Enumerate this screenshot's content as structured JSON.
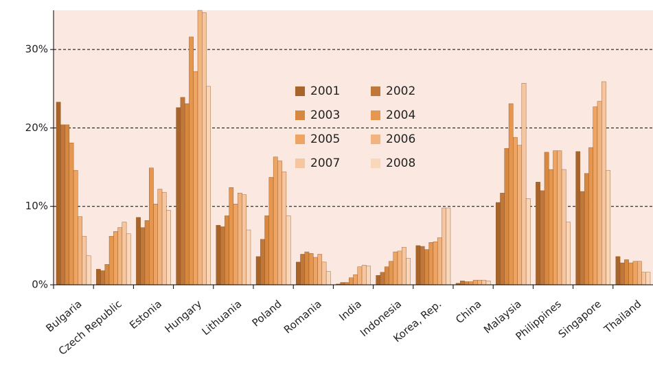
{
  "chart_data": {
    "type": "bar",
    "categories": [
      "Bulgaria",
      "Czech Republic",
      "Estonia",
      "Hungary",
      "Lithuania",
      "Poland",
      "Romania",
      "India",
      "Indonesia",
      "Korea, Rep.",
      "China",
      "Malaysia",
      "Philippines",
      "Singapore",
      "Thailand"
    ],
    "series": [
      {
        "name": "2001",
        "color": "#a9642a",
        "values": [
          23.3,
          2.0,
          8.6,
          22.6,
          7.6,
          3.6,
          2.9,
          0.1,
          1.2,
          5.0,
          0.2,
          10.5,
          13.1,
          17.0,
          3.6
        ]
      },
      {
        "name": "2002",
        "color": "#c0773a",
        "values": [
          20.4,
          1.8,
          7.3,
          23.9,
          7.4,
          5.8,
          3.9,
          0.3,
          1.6,
          4.9,
          0.5,
          11.7,
          12.0,
          11.9,
          2.8
        ]
      },
      {
        "name": "2003",
        "color": "#d68740",
        "values": [
          20.4,
          2.6,
          8.2,
          23.1,
          8.8,
          8.8,
          4.2,
          0.3,
          2.3,
          4.5,
          0.4,
          17.4,
          16.9,
          14.2,
          3.2
        ]
      },
      {
        "name": "2004",
        "color": "#e5964f",
        "values": [
          18.1,
          6.2,
          14.9,
          31.6,
          12.4,
          13.7,
          4.0,
          0.9,
          3.0,
          5.4,
          0.4,
          23.1,
          14.7,
          17.5,
          2.8
        ]
      },
      {
        "name": "2005",
        "color": "#eea462",
        "values": [
          14.6,
          6.8,
          10.3,
          27.2,
          10.3,
          16.3,
          3.5,
          1.3,
          4.2,
          5.5,
          0.6,
          18.8,
          17.1,
          22.7,
          3.0
        ]
      },
      {
        "name": "2006",
        "color": "#f2b47f",
        "values": [
          8.7,
          7.3,
          12.2,
          35,
          11.7,
          15.8,
          3.9,
          2.3,
          4.3,
          6.0,
          0.6,
          17.8,
          17.1,
          23.4,
          3.0
        ]
      },
      {
        "name": "2007",
        "color": "#f6c6a0",
        "values": [
          6.2,
          8.0,
          11.8,
          34.7,
          11.5,
          14.4,
          2.9,
          2.5,
          4.8,
          9.8,
          0.6,
          25.7,
          14.7,
          25.9,
          1.6
        ]
      },
      {
        "name": "2008",
        "color": "#f9d7bb",
        "values": [
          3.7,
          6.5,
          9.5,
          25.3,
          7.0,
          8.8,
          1.7,
          2.4,
          3.4,
          9.8,
          0.5,
          11.0,
          8.0,
          14.6,
          1.6
        ]
      }
    ],
    "ylim": [
      0,
      35
    ],
    "yticks": [
      {
        "value": 0,
        "label": "0%"
      },
      {
        "value": 10,
        "label": "10%"
      },
      {
        "value": 20,
        "label": "20%"
      },
      {
        "value": 30,
        "label": "30%"
      }
    ],
    "grid": true,
    "legend": "center"
  }
}
